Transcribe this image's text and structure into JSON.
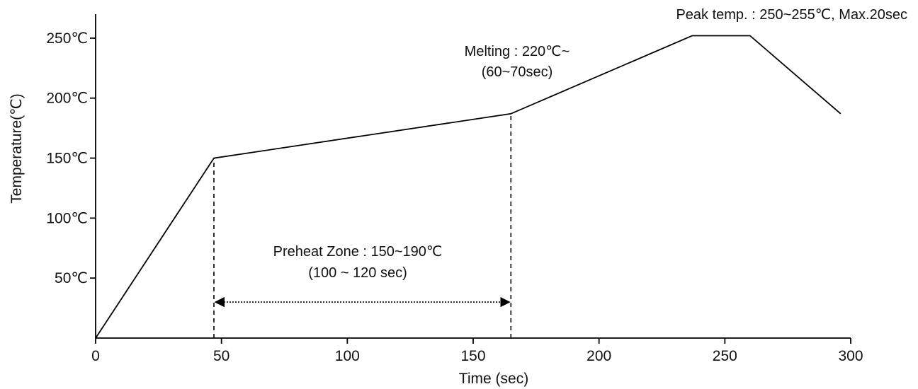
{
  "chart_data": {
    "type": "line",
    "title": "",
    "xlabel": "Time (sec)",
    "ylabel": "Temperature(℃)",
    "xlim": [
      0,
      300
    ],
    "ylim": [
      0,
      270
    ],
    "x_ticks": [
      0,
      50,
      100,
      150,
      200,
      250,
      300
    ],
    "x_tick_labels": [
      "0",
      "50",
      "100",
      "150",
      "200",
      "250",
      "300"
    ],
    "y_ticks": [
      50,
      100,
      150,
      200,
      250
    ],
    "y_tick_labels": [
      "50℃",
      "100℃",
      "150℃",
      "200℃",
      "250℃"
    ],
    "grid": false,
    "legend": "none",
    "series": [
      {
        "x": [
          0,
          47,
          165,
          237,
          260,
          296
        ],
        "y": [
          0,
          150,
          187,
          252,
          252,
          187
        ]
      }
    ],
    "guides": [
      {
        "x": 47,
        "y_from": 0,
        "y_to": 150
      },
      {
        "x": 165,
        "y_from": 0,
        "y_to": 187
      }
    ],
    "range_arrow": {
      "x_from": 47,
      "x_to": 165,
      "y": 30
    },
    "annotations": {
      "peak": "Peak temp. : 250~255℃, Max.20sec",
      "melting_line1": "Melting : 220℃~",
      "melting_line2": "(60~70sec)",
      "preheat_line1": "Preheat Zone : 150~190℃",
      "preheat_line2": "(100 ~ 120 sec)"
    }
  }
}
